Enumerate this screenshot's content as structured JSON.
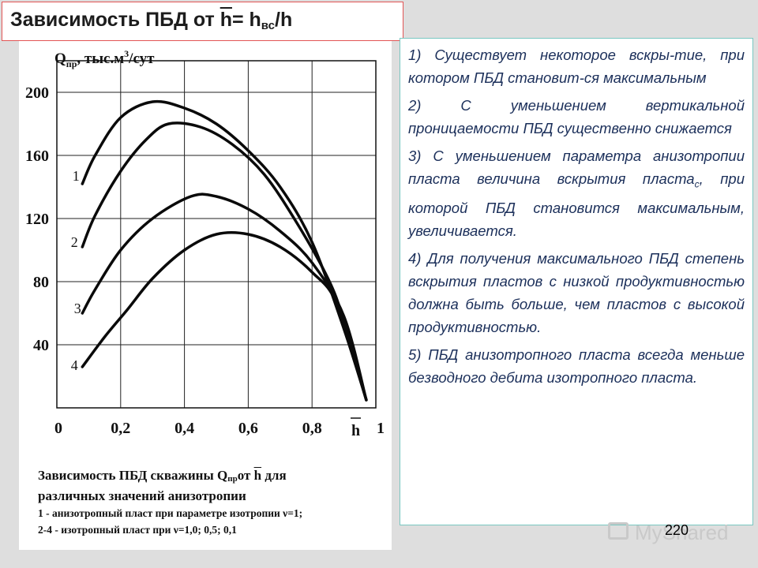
{
  "slide": {
    "title_prefix": "Зависимость ПБД от ",
    "title_var": "h",
    "title_eq": "= h",
    "title_sub": "вс",
    "title_suffix": "/h"
  },
  "caption": {
    "line1_prefix": "Зависимость ПБД скважины Q",
    "line1_sub": "пр",
    "line1_mid": "от ",
    "line1_var": "h",
    "line1_suffix": " для",
    "line2": "различных значений анизотропии",
    "line3": "1 - анизотропный пласт при параметре изотропии ν=1;",
    "line4": "2-4 - изотропный пласт при ν=1,0; 0,5; 0,1"
  },
  "notes": [
    "1) Существует некоторое вскры-тие, при котором ПБД становит-ся максимальным",
    "2) С  уменьшением вертикальной проницаемости ПБД существенно снижается",
    "3)  С  уменьшением  параметра анизотропии  пласта  величина вскрытия пласта",
    "4) Для получения максимального ПБД степень вскрытия пластов с низкой продуктивностью должна быть больше, чем пластов с высокой продуктивностью.",
    "5)  ПБД  анизотропного  пласта всегда меньше безводного дебита изотропного пласта."
  ],
  "note3_sub": "с",
  "note3_tail": ", при которой ПБД  становится максимальным, увеличивается.",
  "watermark": "MyShared",
  "page_number": "220",
  "chart_data": {
    "type": "line",
    "ylabel_prefix": "Q",
    "ylabel_sub": "пр",
    "ylabel_mid": ", тыс.м",
    "ylabel_sup": "3",
    "ylabel_suffix": "/сут",
    "xlabel": "h",
    "xlim": [
      0,
      1
    ],
    "ylim": [
      0,
      220
    ],
    "grid": true,
    "x_ticks": [
      {
        "v": 0,
        "label": "0"
      },
      {
        "v": 0.2,
        "label": "0,2"
      },
      {
        "v": 0.4,
        "label": "0,4"
      },
      {
        "v": 0.6,
        "label": "0,6"
      },
      {
        "v": 0.8,
        "label": "0,8"
      },
      {
        "v": 1.0,
        "label": "1"
      }
    ],
    "y_ticks": [
      {
        "v": 40,
        "label": "40"
      },
      {
        "v": 80,
        "label": "80"
      },
      {
        "v": 120,
        "label": "120"
      },
      {
        "v": 160,
        "label": "160"
      },
      {
        "v": 200,
        "label": "200"
      }
    ],
    "series": [
      {
        "name": "1",
        "x": [
          0.08,
          0.12,
          0.2,
          0.3,
          0.4,
          0.5,
          0.6,
          0.7,
          0.8,
          0.9,
          0.97
        ],
        "y": [
          142,
          160,
          184,
          194,
          190,
          180,
          163,
          140,
          105,
          50,
          5
        ]
      },
      {
        "name": "2",
        "x": [
          0.08,
          0.12,
          0.2,
          0.28,
          0.35,
          0.45,
          0.55,
          0.65,
          0.75,
          0.85,
          0.9,
          0.97
        ],
        "y": [
          102,
          122,
          150,
          170,
          180,
          178,
          167,
          148,
          118,
          82,
          55,
          5
        ]
      },
      {
        "name": "3",
        "x": [
          0.08,
          0.12,
          0.2,
          0.3,
          0.42,
          0.5,
          0.6,
          0.7,
          0.8,
          0.9,
          0.97
        ],
        "y": [
          60,
          75,
          100,
          120,
          134,
          134,
          126,
          112,
          92,
          58,
          5
        ]
      },
      {
        "name": "4",
        "x": [
          0.08,
          0.15,
          0.22,
          0.3,
          0.4,
          0.5,
          0.6,
          0.7,
          0.8,
          0.88,
          0.97
        ],
        "y": [
          26,
          45,
          62,
          82,
          100,
          110,
          110,
          102,
          86,
          65,
          5
        ]
      }
    ],
    "label_points": [
      {
        "name": "1",
        "x": 0.06,
        "y": 147
      },
      {
        "name": "2",
        "x": 0.055,
        "y": 105
      },
      {
        "name": "3",
        "x": 0.065,
        "y": 63
      },
      {
        "name": "4",
        "x": 0.055,
        "y": 27
      }
    ]
  }
}
